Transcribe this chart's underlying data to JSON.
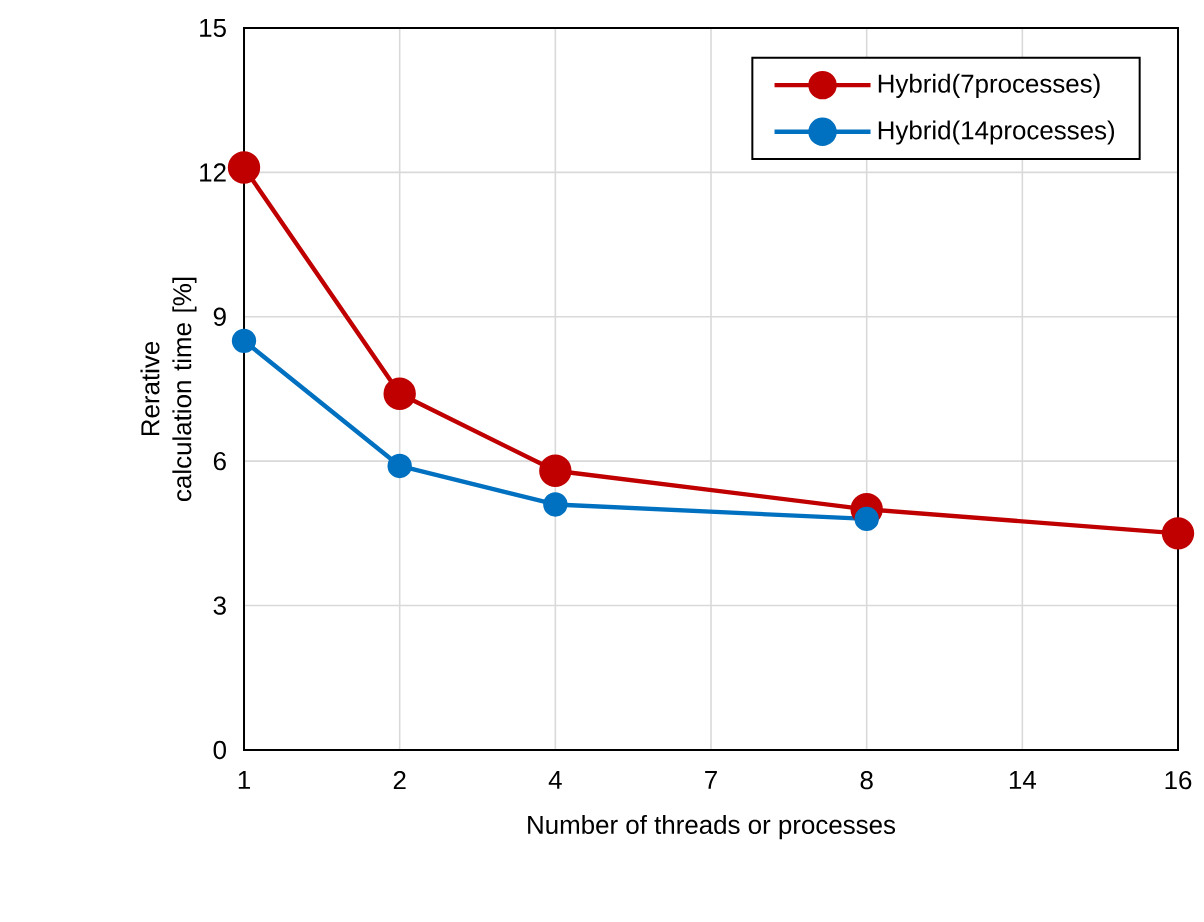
{
  "chart_data": {
    "type": "line",
    "xlabel": "Number of threads or processes",
    "ylabel": "Rerative calculation time [%]",
    "categories": [
      "1",
      "2",
      "4",
      "7",
      "8",
      "14",
      "16"
    ],
    "series": [
      {
        "name": "Hybrid(7processes)",
        "color": "#c00000",
        "values": [
          12.1,
          7.4,
          5.8,
          null,
          5.0,
          null,
          4.5
        ]
      },
      {
        "name": "Hybrid(14processes)",
        "color": "#0070c0",
        "values": [
          8.5,
          5.9,
          5.1,
          null,
          4.8,
          null,
          null
        ]
      }
    ],
    "ylim": [
      0,
      15
    ],
    "yticks": [
      0,
      3,
      6,
      9,
      12,
      15
    ],
    "grid": true,
    "legend": "top right",
    "marker": "circle",
    "line_style": "solid"
  }
}
